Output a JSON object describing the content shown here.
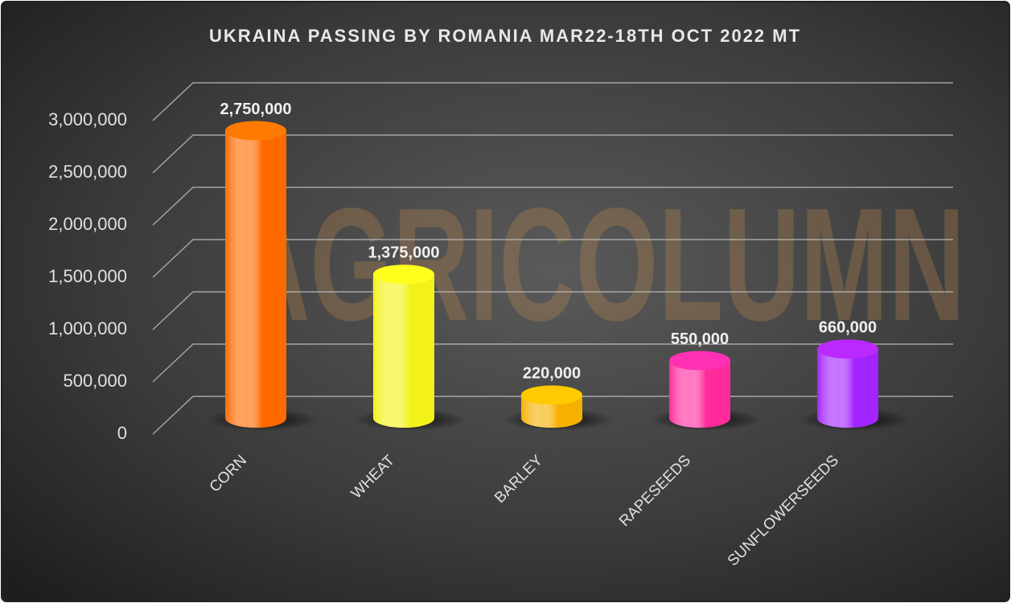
{
  "chart_data": {
    "type": "cylinder-bar",
    "title": "UKRAINA PASSING BY ROMANIA MAR22-18TH OCT 2022 MT",
    "watermark": "AGRICOLUMN",
    "categories": [
      "CORN",
      "WHEAT",
      "BARLEY",
      "RAPESEEDS",
      "SUNFLOWERSEEDS"
    ],
    "values": [
      2750000,
      1375000,
      220000,
      550000,
      660000
    ],
    "value_labels": [
      "2,750,000",
      "1,375,000",
      "220,000",
      "550,000",
      "660,000"
    ],
    "colors": [
      "#ff6a00",
      "#f2f21a",
      "#f5b000",
      "#ff2a9c",
      "#a224ff"
    ],
    "ylim": [
      0,
      3000000
    ],
    "yticks": [
      0,
      {
        "value": 500000,
        "label": "500,000"
      },
      {
        "value": 1000000,
        "label": "1,000,000"
      },
      {
        "value": 1500000,
        "label": "1,500,000"
      },
      {
        "value": 2000000,
        "label": "2,000,000"
      },
      {
        "value": 2500000,
        "label": "2,500,000"
      },
      {
        "value": 3000000,
        "label": "3,000,000"
      }
    ],
    "grid": true
  }
}
